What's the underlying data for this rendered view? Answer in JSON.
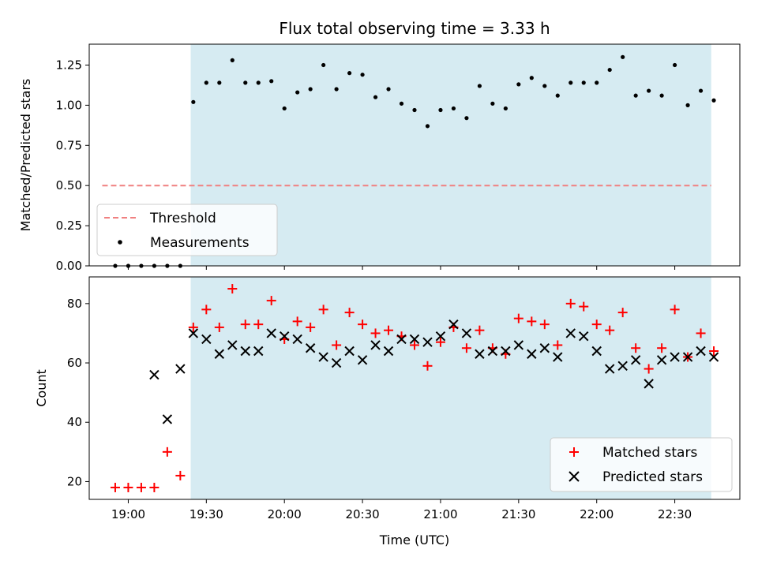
{
  "chart_data": [
    {
      "type": "scatter",
      "title": "Flux total observing time = 3.33 h",
      "xlabel": "",
      "ylabel": "Matched/Predicted stars",
      "xlim": [
        "18:45",
        "22:55"
      ],
      "ylim": [
        0,
        1.38
      ],
      "yticks": [
        "0.00",
        "0.25",
        "0.50",
        "0.75",
        "1.00",
        "1.25"
      ],
      "shaded_region": [
        "19:24",
        "22:44"
      ],
      "shaded_color": "#add8e6",
      "threshold": {
        "name": "Threshold",
        "value": 0.5,
        "x_range": [
          "18:50",
          "22:44"
        ],
        "color": "#f08080"
      },
      "series": [
        {
          "name": "Measurements",
          "color": "#000000",
          "marker": "dot",
          "x": [
            "18:55",
            "19:00",
            "19:05",
            "19:10",
            "19:15",
            "19:20",
            "19:25",
            "19:30",
            "19:35",
            "19:40",
            "19:45",
            "19:50",
            "19:55",
            "20:00",
            "20:05",
            "20:10",
            "20:15",
            "20:20",
            "20:25",
            "20:30",
            "20:35",
            "20:40",
            "20:45",
            "20:50",
            "20:55",
            "21:00",
            "21:05",
            "21:10",
            "21:15",
            "21:20",
            "21:25",
            "21:30",
            "21:35",
            "21:40",
            "21:45",
            "21:50",
            "21:55",
            "22:00",
            "22:05",
            "22:10",
            "22:15",
            "22:20",
            "22:25",
            "22:30",
            "22:35",
            "22:40",
            "22:45"
          ],
          "y": [
            0.0,
            0.0,
            0.0,
            0.0,
            0.0,
            0.0,
            1.02,
            1.14,
            1.14,
            1.28,
            1.14,
            1.14,
            1.15,
            0.98,
            1.08,
            1.1,
            1.25,
            1.1,
            1.2,
            1.19,
            1.05,
            1.1,
            1.01,
            0.97,
            0.87,
            0.97,
            0.98,
            0.92,
            1.12,
            1.01,
            0.98,
            1.13,
            1.17,
            1.12,
            1.06,
            1.14,
            1.14,
            1.14,
            1.22,
            1.3,
            1.06,
            1.09,
            1.06,
            1.25,
            1.0,
            1.09,
            1.03
          ]
        }
      ],
      "legend": [
        "Threshold",
        "Measurements"
      ],
      "legend_position": "lower-left"
    },
    {
      "type": "scatter",
      "title": "",
      "xlabel": "Time (UTC)",
      "ylabel": "Count",
      "xlim": [
        "18:45",
        "22:55"
      ],
      "ylim": [
        14,
        89
      ],
      "yticks": [
        "20",
        "40",
        "60",
        "80"
      ],
      "xticks": [
        "19:00",
        "19:30",
        "20:00",
        "20:30",
        "21:00",
        "21:30",
        "22:00",
        "22:30"
      ],
      "shaded_region": [
        "19:24",
        "22:44"
      ],
      "shaded_color": "#add8e6",
      "series": [
        {
          "name": "Matched stars",
          "color": "#ff0000",
          "marker": "plus",
          "x": [
            "18:55",
            "19:00",
            "19:05",
            "19:10",
            "19:15",
            "19:20",
            "19:25",
            "19:30",
            "19:35",
            "19:40",
            "19:45",
            "19:50",
            "19:55",
            "20:00",
            "20:05",
            "20:10",
            "20:15",
            "20:20",
            "20:25",
            "20:30",
            "20:35",
            "20:40",
            "20:45",
            "20:50",
            "20:55",
            "21:00",
            "21:05",
            "21:10",
            "21:15",
            "21:20",
            "21:25",
            "21:30",
            "21:35",
            "21:40",
            "21:45",
            "21:50",
            "21:55",
            "22:00",
            "22:05",
            "22:10",
            "22:15",
            "22:20",
            "22:25",
            "22:30",
            "22:35",
            "22:40",
            "22:45"
          ],
          "y": [
            18,
            18,
            18,
            18,
            30,
            22,
            72,
            78,
            72,
            85,
            73,
            73,
            81,
            68,
            74,
            72,
            78,
            66,
            77,
            73,
            70,
            71,
            69,
            66,
            59,
            67,
            72,
            65,
            71,
            65,
            63,
            75,
            74,
            73,
            66,
            80,
            79,
            73,
            71,
            77,
            65,
            58,
            65,
            78,
            62,
            70,
            64
          ]
        },
        {
          "name": "Predicted stars",
          "color": "#000000",
          "marker": "cross",
          "x": [
            "19:10",
            "19:15",
            "19:20",
            "19:25",
            "19:30",
            "19:35",
            "19:40",
            "19:45",
            "19:50",
            "19:55",
            "20:00",
            "20:05",
            "20:10",
            "20:15",
            "20:20",
            "20:25",
            "20:30",
            "20:35",
            "20:40",
            "20:45",
            "20:50",
            "20:55",
            "21:00",
            "21:05",
            "21:10",
            "21:15",
            "21:20",
            "21:25",
            "21:30",
            "21:35",
            "21:40",
            "21:45",
            "21:50",
            "21:55",
            "22:00",
            "22:05",
            "22:10",
            "22:15",
            "22:20",
            "22:25",
            "22:30",
            "22:35",
            "22:40",
            "22:45"
          ],
          "y": [
            56,
            41,
            58,
            70,
            68,
            63,
            66,
            64,
            64,
            70,
            69,
            68,
            65,
            62,
            60,
            64,
            61,
            66,
            64,
            68,
            68,
            67,
            69,
            73,
            70,
            63,
            64,
            64,
            66,
            63,
            65,
            62,
            70,
            69,
            64,
            58,
            59,
            61,
            53,
            61,
            62,
            62,
            64,
            62
          ]
        }
      ],
      "legend": [
        "Matched stars",
        "Predicted stars"
      ],
      "legend_position": "lower-right"
    }
  ]
}
